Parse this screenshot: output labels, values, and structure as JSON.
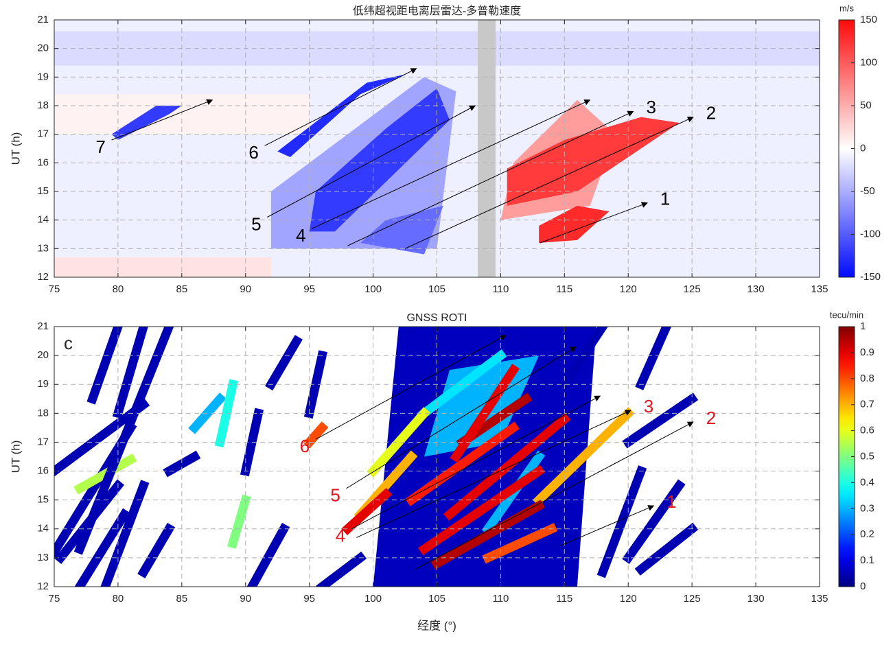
{
  "chart_data": [
    {
      "type": "heatmap",
      "title": "低纬超视距电离层雷达-多普勒速度",
      "ylabel": "UT (h)",
      "xlim": [
        75,
        135
      ],
      "xticks": [
        75,
        80,
        85,
        90,
        95,
        100,
        105,
        110,
        115,
        120,
        125,
        130,
        135
      ],
      "ylim": [
        12,
        21
      ],
      "yticks": [
        12,
        13,
        14,
        15,
        16,
        17,
        18,
        19,
        20,
        21
      ],
      "grid": true,
      "colormap": "bwr",
      "clim": [
        -150,
        150
      ],
      "cticks": [
        -150,
        -100,
        -50,
        0,
        50,
        100,
        150
      ],
      "colorbar_label": "m/s",
      "gap_x": [
        108.2,
        109.6
      ],
      "gap_color": "#c8c8c8",
      "patches": [
        {
          "x": [
            75,
            135,
            135,
            75
          ],
          "y": [
            12,
            12,
            21,
            21
          ],
          "value": -10
        },
        {
          "x": [
            75,
            135,
            135,
            75
          ],
          "y": [
            19.4,
            19.4,
            20.6,
            20.6
          ],
          "value": -22
        },
        {
          "x": [
            75,
            92,
            92,
            75
          ],
          "y": [
            12,
            12,
            12.7,
            12.7
          ],
          "value": 18
        },
        {
          "x": [
            75,
            95,
            95,
            75
          ],
          "y": [
            17,
            17,
            18.4,
            18.4
          ],
          "value": 8
        },
        {
          "x": [
            92,
            105,
            106.5,
            104,
            92
          ],
          "y": [
            13,
            13,
            18.5,
            19,
            15
          ],
          "value": -55
        },
        {
          "x": [
            95,
            97,
            106,
            105,
            101,
            95.5
          ],
          "y": [
            13.6,
            13.6,
            17.5,
            18.6,
            17.2,
            15
          ],
          "value": -120
        },
        {
          "x": [
            93.5,
            99,
            102.6,
            99.5,
            92.5
          ],
          "y": [
            16.2,
            18.4,
            19.1,
            18.8,
            16.4
          ],
          "value": -130
        },
        {
          "x": [
            80,
            84,
            85,
            83,
            79.5
          ],
          "y": [
            16.8,
            17.7,
            18,
            18,
            17
          ],
          "value": -120
        },
        {
          "x": [
            99,
            104,
            105.5,
            101
          ],
          "y": [
            13.2,
            12.8,
            14.5,
            14
          ],
          "value": -90
        },
        {
          "x": [
            110,
            117,
            119,
            116,
            111
          ],
          "y": [
            14,
            14.5,
            17,
            18.2,
            16
          ],
          "value": 60
        },
        {
          "x": [
            110.5,
            116,
            124,
            121,
            115,
            110.5
          ],
          "y": [
            14.5,
            15,
            17.4,
            17.6,
            16.8,
            15.8
          ],
          "value": 120
        },
        {
          "x": [
            113,
            116,
            118.5,
            116,
            113
          ],
          "y": [
            13.2,
            13.3,
            14.3,
            14.5,
            13.8
          ],
          "value": 130
        }
      ],
      "annotation_color": "#000000",
      "arrows": [
        {
          "label": "1",
          "label_at": "end",
          "x": [
            113.1,
            121.5
          ],
          "y": [
            13.2,
            14.6
          ]
        },
        {
          "label": "2",
          "label_at": "end",
          "x": [
            102.5,
            125.1
          ],
          "y": [
            13.0,
            17.6
          ]
        },
        {
          "label": "3",
          "label_at": "end",
          "x": [
            98.0,
            120.4
          ],
          "y": [
            13.1,
            17.8
          ]
        },
        {
          "label": "4",
          "label_at": "start",
          "x": [
            95.2,
            117.0
          ],
          "y": [
            13.7,
            18.2
          ]
        },
        {
          "label": "5",
          "label_at": "start",
          "x": [
            91.7,
            108.0
          ],
          "y": [
            14.1,
            18.0
          ]
        },
        {
          "label": "6",
          "label_at": "start",
          "x": [
            91.5,
            103.4
          ],
          "y": [
            16.6,
            19.3
          ]
        },
        {
          "label": "7",
          "label_at": "start",
          "x": [
            79.5,
            87.4
          ],
          "y": [
            16.8,
            18.2
          ]
        }
      ]
    },
    {
      "type": "heatmap",
      "title": "GNSS ROTI",
      "panel_label": "c",
      "ylabel": "UT (h)",
      "xlabel": "经度 (°)",
      "xlim": [
        75,
        135
      ],
      "xticks": [
        75,
        80,
        85,
        90,
        95,
        100,
        105,
        110,
        115,
        120,
        125,
        130,
        135
      ],
      "ylim": [
        12,
        21
      ],
      "yticks": [
        12,
        13,
        14,
        15,
        16,
        17,
        18,
        19,
        20,
        21
      ],
      "grid": true,
      "colormap": "jet",
      "clim": [
        0,
        1
      ],
      "cticks": [
        0,
        0.1,
        0.2,
        0.3,
        0.4,
        0.5,
        0.6,
        0.7,
        0.8,
        0.9,
        1
      ],
      "colorbar_label": "tecu/min",
      "patches": [
        {
          "x": [
            100,
            116,
            117.5,
            102
          ],
          "y": [
            12,
            12,
            21,
            21
          ],
          "value": 0.06
        },
        {
          "x": [
            104,
            110,
            113,
            106
          ],
          "y": [
            16.5,
            17,
            20,
            19.5
          ],
          "value": 0.3
        }
      ],
      "streaks": [
        {
          "x": [
            75,
            81
          ],
          "y": [
            13.2,
            17.5
          ],
          "value": 0.05
        },
        {
          "x": [
            75.5,
            80
          ],
          "y": [
            13,
            15.5
          ],
          "value": 0.05
        },
        {
          "x": [
            77,
            80.5
          ],
          "y": [
            12,
            14.5
          ],
          "value": 0.05
        },
        {
          "x": [
            75,
            82
          ],
          "y": [
            16,
            18.3
          ],
          "value": 0.05
        },
        {
          "x": [
            77,
            81
          ],
          "y": [
            15.4,
            16.4
          ],
          "value": 0.55
        },
        {
          "x": [
            77,
            84
          ],
          "y": [
            13.3,
            21
          ],
          "value": 0.05
        },
        {
          "x": [
            79,
            82
          ],
          "y": [
            12,
            15.5
          ],
          "value": 0.05
        },
        {
          "x": [
            78,
            80
          ],
          "y": [
            18.5,
            21
          ],
          "value": 0.05
        },
        {
          "x": [
            80,
            82
          ],
          "y": [
            18,
            21
          ],
          "value": 0.05
        },
        {
          "x": [
            84,
            86
          ],
          "y": [
            16,
            16.5
          ],
          "value": 0.05
        },
        {
          "x": [
            82,
            84
          ],
          "y": [
            12.5,
            14
          ],
          "value": 0.05
        },
        {
          "x": [
            86,
            88
          ],
          "y": [
            17.5,
            18.5
          ],
          "value": 0.3
        },
        {
          "x": [
            88,
            89
          ],
          "y": [
            17,
            19
          ],
          "value": 0.4
        },
        {
          "x": [
            90,
            91
          ],
          "y": [
            16,
            18
          ],
          "value": 0.05
        },
        {
          "x": [
            89,
            90
          ],
          "y": [
            13.5,
            15
          ],
          "value": 0.5
        },
        {
          "x": [
            90.5,
            93
          ],
          "y": [
            12,
            14
          ],
          "value": 0.05
        },
        {
          "x": [
            92,
            94
          ],
          "y": [
            19,
            20.5
          ],
          "value": 0.05
        },
        {
          "x": [
            95,
            96
          ],
          "y": [
            18,
            20
          ],
          "value": 0.05
        },
        {
          "x": [
            96,
            99
          ],
          "y": [
            12,
            13
          ],
          "value": 0.05
        },
        {
          "x": [
            95,
            96
          ],
          "y": [
            17,
            17.5
          ],
          "value": 0.8
        },
        {
          "x": [
            118,
            121
          ],
          "y": [
            12.5,
            16
          ],
          "value": 0.05
        },
        {
          "x": [
            120,
            124
          ],
          "y": [
            13,
            15.5
          ],
          "value": 0.05
        },
        {
          "x": [
            121,
            125
          ],
          "y": [
            12.6,
            14
          ],
          "value": 0.05
        },
        {
          "x": [
            120,
            125
          ],
          "y": [
            17,
            18.5
          ],
          "value": 0.05
        },
        {
          "x": [
            121,
            123
          ],
          "y": [
            19,
            21
          ],
          "value": 0.05
        },
        {
          "x": [
            115,
            118
          ],
          "y": [
            19,
            21
          ],
          "value": 0.05
        },
        {
          "x": [
            113,
            120
          ],
          "y": [
            15,
            18
          ],
          "value": 0.7
        },
        {
          "x": [
            104,
            110
          ],
          "y": [
            18,
            20
          ],
          "value": 0.35
        },
        {
          "x": [
            109,
            113
          ],
          "y": [
            14,
            16.5
          ],
          "value": 0.3
        },
        {
          "x": [
            99,
            103
          ],
          "y": [
            14.5,
            16.5
          ],
          "value": 0.7
        },
        {
          "x": [
            100,
            104
          ],
          "y": [
            16,
            18
          ],
          "value": 0.6
        },
        {
          "x": [
            98,
            101
          ],
          "y": [
            14,
            15.2
          ],
          "value": 0.9
        },
        {
          "x": [
            109,
            114
          ],
          "y": [
            13,
            14
          ],
          "value": 0.8
        },
        {
          "x": [
            103,
            111
          ],
          "y": [
            15,
            17.5
          ],
          "value": 0.85
        },
        {
          "x": [
            105,
            113
          ],
          "y": [
            12.8,
            14.8
          ],
          "value": 0.95
        },
        {
          "x": [
            104,
            113
          ],
          "y": [
            13.3,
            16
          ],
          "value": 0.9
        },
        {
          "x": [
            106,
            115
          ],
          "y": [
            14.5,
            17.8
          ],
          "value": 0.9
        },
        {
          "x": [
            107,
            112
          ],
          "y": [
            17,
            18.5
          ],
          "value": 0.95
        },
        {
          "x": [
            106.5,
            111
          ],
          "y": [
            16.5,
            19.5
          ],
          "value": 0.9
        }
      ],
      "annotation_color": "#e8141c",
      "arrows": [
        {
          "label": "1",
          "label_at": "end",
          "x": [
            114.6,
            122.0
          ],
          "y": [
            13.4,
            14.8
          ]
        },
        {
          "label": "2",
          "label_at": "end",
          "x": [
            103.3,
            125.1
          ],
          "y": [
            12.6,
            17.7
          ]
        },
        {
          "label": "3",
          "label_at": "end",
          "x": [
            98.7,
            120.2
          ],
          "y": [
            13.7,
            18.1
          ]
        },
        {
          "label": "4",
          "label_at": "start",
          "x": [
            98.3,
            117.8
          ],
          "y": [
            14.0,
            18.6
          ]
        },
        {
          "label": "5",
          "label_at": "start",
          "x": [
            97.9,
            115.9
          ],
          "y": [
            15.4,
            20.3
          ]
        },
        {
          "label": "6",
          "label_at": "start",
          "x": [
            95.5,
            110.4
          ],
          "y": [
            17.1,
            20.7
          ]
        }
      ]
    }
  ]
}
